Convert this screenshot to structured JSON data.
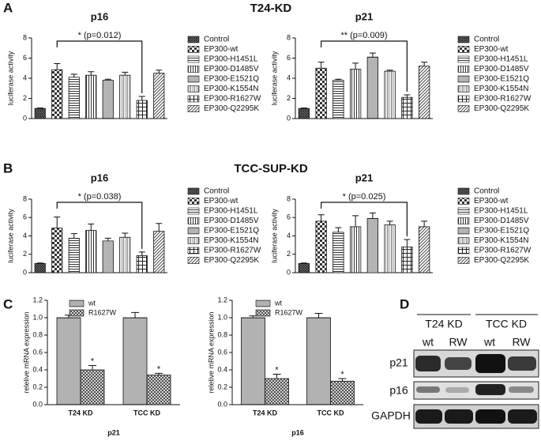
{
  "panels": [
    "A",
    "B",
    "C",
    "D"
  ],
  "section_titles": [
    "T24-KD",
    "TCC-SUP-KD"
  ],
  "chart_data": [
    {
      "type": "bar",
      "title": "p16",
      "ylabel": "luciferase activity",
      "categories": [
        "Control",
        "EP300-wt",
        "EP300-H1451L",
        "EP300-D1485V",
        "EP300-E1521Q",
        "EP300-K1554N",
        "EP300-R1627W",
        "EP300-Q2295K"
      ],
      "values": [
        1.0,
        4.85,
        4.1,
        4.3,
        3.8,
        4.3,
        1.8,
        4.5
      ],
      "errors": [
        0.05,
        0.6,
        0.3,
        0.35,
        0.1,
        0.3,
        0.4,
        0.3
      ],
      "ylim": [
        0,
        8
      ],
      "yticks": [
        0,
        2,
        4,
        6,
        8
      ],
      "annotation": "* (p=0.012)"
    },
    {
      "type": "bar",
      "title": "p21",
      "ylabel": "luciferase activity",
      "categories": [
        "Control",
        "EP300-wt",
        "EP300-H1451L",
        "EP300-D1485V",
        "EP300-E1521Q",
        "EP300-K1554N",
        "EP300-R1627W",
        "EP300-Q2295K"
      ],
      "values": [
        1.0,
        5.0,
        3.8,
        4.9,
        6.1,
        4.7,
        2.1,
        5.2
      ],
      "errors": [
        0.05,
        0.6,
        0.1,
        0.6,
        0.4,
        0.1,
        0.25,
        0.4
      ],
      "ylim": [
        0,
        8
      ],
      "yticks": [
        0,
        2,
        4,
        6,
        8
      ],
      "annotation": "** (p=0.009)"
    },
    {
      "type": "bar",
      "title": "p16",
      "ylabel": "luciferase activity",
      "categories": [
        "Control",
        "EP300-wt",
        "EP300-H1451L",
        "EP300-D1485V",
        "EP300-E1521Q",
        "EP300-K1554N",
        "EP300-R1627W",
        "EP300-Q2295K"
      ],
      "values": [
        1.0,
        4.85,
        3.75,
        4.6,
        3.45,
        3.85,
        1.85,
        4.5
      ],
      "errors": [
        0.05,
        1.2,
        0.5,
        0.7,
        0.3,
        0.45,
        0.4,
        0.85
      ],
      "ylim": [
        0,
        8
      ],
      "yticks": [
        0,
        2,
        4,
        6,
        8
      ],
      "annotation": "* (p=0.038)"
    },
    {
      "type": "bar",
      "title": "p21",
      "ylabel": "luciferase activity",
      "categories": [
        "Control",
        "EP300-wt",
        "EP300-H1451L",
        "EP300-D1485V",
        "EP300-E1521Q",
        "EP300-K1554N",
        "EP300-R1627W",
        "EP300-Q2295K"
      ],
      "values": [
        1.0,
        5.6,
        4.4,
        5.0,
        5.9,
        5.2,
        2.8,
        5.0
      ],
      "errors": [
        0.05,
        0.7,
        0.5,
        1.2,
        0.6,
        0.4,
        0.8,
        0.6
      ],
      "ylim": [
        0,
        8
      ],
      "yticks": [
        0,
        2,
        4,
        6,
        8
      ],
      "annotation": "* (p=0.025)"
    },
    {
      "type": "grouped_bar",
      "xlabel": "p21",
      "ylabel": "relelive mRNA expression",
      "categories": [
        "T24 KD",
        "TCC KD"
      ],
      "series": [
        {
          "name": "wt",
          "values": [
            1.0,
            1.0
          ],
          "errors": [
            0.03,
            0.06
          ]
        },
        {
          "name": "R1627W",
          "values": [
            0.4,
            0.34
          ],
          "errors": [
            0.05,
            0.02
          ]
        }
      ],
      "annotations": [
        "*",
        "*"
      ],
      "ylim": [
        0,
        1.2
      ],
      "yticks": [
        {
          "value": 0,
          "label": "0.0"
        },
        0.2,
        0.4,
        0.6,
        0.8,
        {
          "value": 1,
          "label": "1.0"
        },
        1.2
      ]
    },
    {
      "type": "grouped_bar",
      "xlabel": "p16",
      "ylabel": "relelive mRNA expression",
      "categories": [
        "T24 KD",
        "TCC KD"
      ],
      "series": [
        {
          "name": "wt",
          "values": [
            1.0,
            1.0
          ],
          "errors": [
            0.02,
            0.05
          ]
        },
        {
          "name": "R1627W",
          "values": [
            0.3,
            0.27
          ],
          "errors": [
            0.05,
            0.03
          ]
        }
      ],
      "annotations": [
        "*",
        "*"
      ],
      "ylim": [
        0,
        1.2
      ],
      "yticks": [
        {
          "value": 0,
          "label": "0.0"
        },
        0.2,
        0.4,
        0.6,
        0.8,
        {
          "value": 1,
          "label": "1.0"
        },
        1.2
      ]
    }
  ],
  "western_blot": {
    "groups": [
      "T24 KD",
      "TCC KD"
    ],
    "lanes": [
      "wt",
      "RW",
      "wt",
      "RW"
    ],
    "rows": [
      "p21",
      "p16",
      "GAPDH"
    ]
  }
}
